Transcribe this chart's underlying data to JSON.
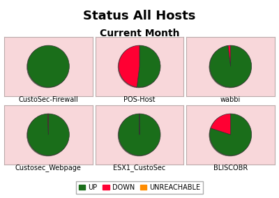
{
  "title": "Status All Hosts",
  "subtitle": "Current Month",
  "background_color": "#f8d7da",
  "outer_bg": "#ffffff",
  "hosts": [
    {
      "name": "CustoSec-Firewall",
      "up": 100.0,
      "down": 0.0,
      "unreachable": 0.0
    },
    {
      "name": "POS-Host",
      "up": 52.0,
      "down": 48.0,
      "unreachable": 0.0
    },
    {
      "name": "wabbi",
      "up": 98.0,
      "down": 2.0,
      "unreachable": 0.0
    },
    {
      "name": "Custosec_Webpage",
      "up": 99.5,
      "down": 0.5,
      "unreachable": 0.0
    },
    {
      "name": "ESX1_CustoSec",
      "up": 99.7,
      "down": 0.3,
      "unreachable": 0.0
    },
    {
      "name": "BLISCOBR",
      "up": 80.0,
      "down": 20.0,
      "unreachable": 0.0
    }
  ],
  "colors": {
    "UP": "#1a6e1a",
    "DOWN": "#ff0033",
    "UNREACHABLE": "#ff8c00"
  },
  "legend_labels": [
    "UP",
    "DOWN",
    "UNREACHABLE"
  ],
  "title_fontsize": 13,
  "subtitle_fontsize": 10,
  "label_fontsize": 7,
  "legend_fontsize": 7,
  "pie_shadow": true,
  "grid_rows": 2,
  "grid_cols": 3
}
